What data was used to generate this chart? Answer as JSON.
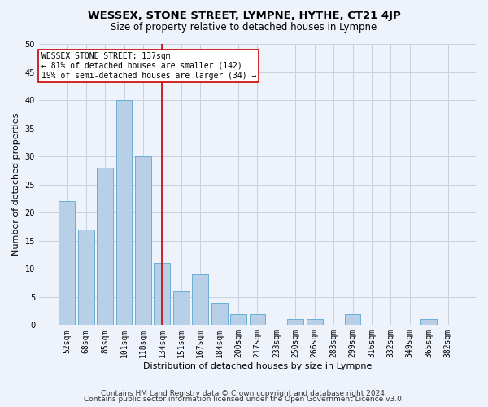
{
  "title": "WESSEX, STONE STREET, LYMPNE, HYTHE, CT21 4JP",
  "subtitle": "Size of property relative to detached houses in Lympne",
  "xlabel": "Distribution of detached houses by size in Lympne",
  "ylabel": "Number of detached properties",
  "categories": [
    "52sqm",
    "68sqm",
    "85sqm",
    "101sqm",
    "118sqm",
    "134sqm",
    "151sqm",
    "167sqm",
    "184sqm",
    "200sqm",
    "217sqm",
    "233sqm",
    "250sqm",
    "266sqm",
    "283sqm",
    "299sqm",
    "316sqm",
    "332sqm",
    "349sqm",
    "365sqm",
    "382sqm"
  ],
  "values": [
    22,
    17,
    28,
    40,
    30,
    11,
    6,
    9,
    4,
    2,
    2,
    0,
    1,
    1,
    0,
    2,
    0,
    0,
    0,
    1,
    0
  ],
  "bar_color": "#b8cfe8",
  "bar_edge_color": "#6baed6",
  "vline_x_index": 5,
  "vline_color": "#cc0000",
  "annotation_text": "WESSEX STONE STREET: 137sqm\n← 81% of detached houses are smaller (142)\n19% of semi-detached houses are larger (34) →",
  "annotation_box_color": "#ffffff",
  "annotation_box_edge_color": "#cc0000",
  "ylim": [
    0,
    50
  ],
  "yticks": [
    0,
    5,
    10,
    15,
    20,
    25,
    30,
    35,
    40,
    45,
    50
  ],
  "footer_line1": "Contains HM Land Registry data © Crown copyright and database right 2024.",
  "footer_line2": "Contains public sector information licensed under the Open Government Licence v3.0.",
  "background_color": "#eef2fa",
  "grid_color": "#c8d0e0",
  "title_fontsize": 9.5,
  "subtitle_fontsize": 8.5,
  "axis_label_fontsize": 8,
  "tick_fontsize": 7,
  "annotation_fontsize": 7,
  "footer_fontsize": 6.5
}
